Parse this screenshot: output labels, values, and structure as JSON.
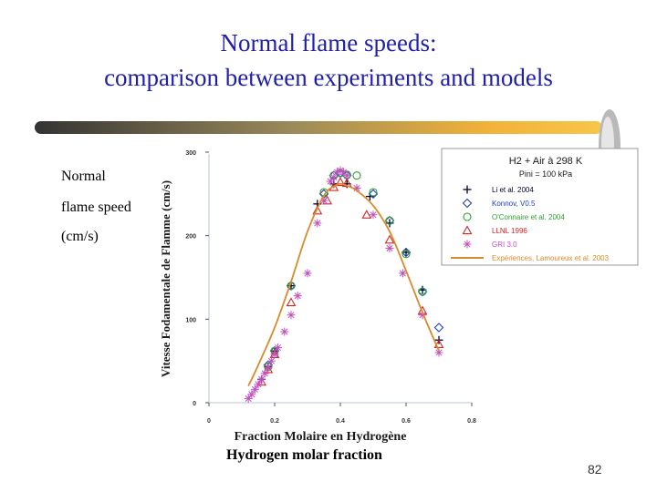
{
  "slide": {
    "title_line1": "Normal flame speeds:",
    "title_line2": "comparison between experiments and models",
    "side_label_1": "Normal",
    "side_label_2": "flame speed",
    "side_label_3": "(cm/s)",
    "x_caption_en": "Hydrogen molar fraction",
    "page_number": "82",
    "title_color": "#1f1fa8"
  },
  "chart_data": {
    "type": "scatter",
    "xlabel": "Fraction Molaire en Hydrogène",
    "ylabel": "Vitesse Fodamentale de Flamme (cm/s)",
    "xlim": [
      0,
      0.8
    ],
    "ylim": [
      0,
      300
    ],
    "x_ticks": [
      "0",
      "0.2",
      "0.4",
      "0.6",
      "0.8"
    ],
    "y_ticks": [
      "0",
      "100",
      "200",
      "300"
    ],
    "legend": {
      "placement": "top-right",
      "title": "H2 + Air à 298 K",
      "subtitle": "Pini = 100 kPa"
    },
    "series": [
      {
        "name": "Li et al. 2004",
        "marker": "plus",
        "color": "#000033",
        "x": [
          0.16,
          0.18,
          0.2,
          0.25,
          0.33,
          0.38,
          0.42,
          0.49,
          0.55,
          0.6,
          0.65,
          0.7
        ],
        "y": [
          28,
          43,
          62,
          140,
          238,
          262,
          262,
          247,
          215,
          180,
          135,
          75
        ]
      },
      {
        "name": "Konnov, V0.5",
        "marker": "diamond",
        "color": "#1f3fbf",
        "x": [
          0.18,
          0.2,
          0.25,
          0.35,
          0.38,
          0.4,
          0.42,
          0.5,
          0.55,
          0.6,
          0.65,
          0.7
        ],
        "y": [
          45,
          62,
          140,
          250,
          272,
          275,
          272,
          250,
          218,
          180,
          133,
          90
        ]
      },
      {
        "name": "O'Connaire et al. 2004",
        "marker": "circle",
        "color": "#2ca02c",
        "x": [
          0.18,
          0.2,
          0.25,
          0.35,
          0.38,
          0.4,
          0.42,
          0.45,
          0.5,
          0.55,
          0.6,
          0.65
        ],
        "y": [
          43,
          62,
          140,
          252,
          272,
          275,
          273,
          272,
          252,
          218,
          178,
          133
        ]
      },
      {
        "name": "LLNL 1996",
        "marker": "triangle",
        "color": "#d62728",
        "x": [
          0.16,
          0.18,
          0.2,
          0.25,
          0.33,
          0.36,
          0.38,
          0.4,
          0.42,
          0.48,
          0.55,
          0.65,
          0.7
        ],
        "y": [
          25,
          40,
          58,
          120,
          230,
          242,
          258,
          264,
          263,
          225,
          195,
          110,
          70
        ]
      },
      {
        "name": "GRI 3.0",
        "marker": "asterisk",
        "color": "#c050c0",
        "x": [
          0.12,
          0.13,
          0.14,
          0.15,
          0.16,
          0.17,
          0.18,
          0.19,
          0.2,
          0.21,
          0.23,
          0.25,
          0.27,
          0.3,
          0.33,
          0.35,
          0.37,
          0.38,
          0.39,
          0.4,
          0.41,
          0.42,
          0.45,
          0.5,
          0.55,
          0.59,
          0.65,
          0.7
        ],
        "y": [
          5,
          10,
          16,
          22,
          28,
          35,
          42,
          50,
          58,
          66,
          85,
          105,
          128,
          155,
          215,
          242,
          265,
          270,
          276,
          278,
          276,
          272,
          257,
          225,
          185,
          155,
          105,
          60
        ]
      },
      {
        "name": "Expériences, Lamoureux et al. 2003",
        "marker": "line",
        "color": "#d98a2b",
        "x": [
          0.12,
          0.15,
          0.2,
          0.25,
          0.3,
          0.35,
          0.38,
          0.4,
          0.42,
          0.45,
          0.5,
          0.55,
          0.6,
          0.65,
          0.7
        ],
        "y": [
          20,
          45,
          90,
          145,
          205,
          248,
          259,
          262,
          260,
          254,
          236,
          205,
          158,
          108,
          62
        ]
      }
    ]
  }
}
